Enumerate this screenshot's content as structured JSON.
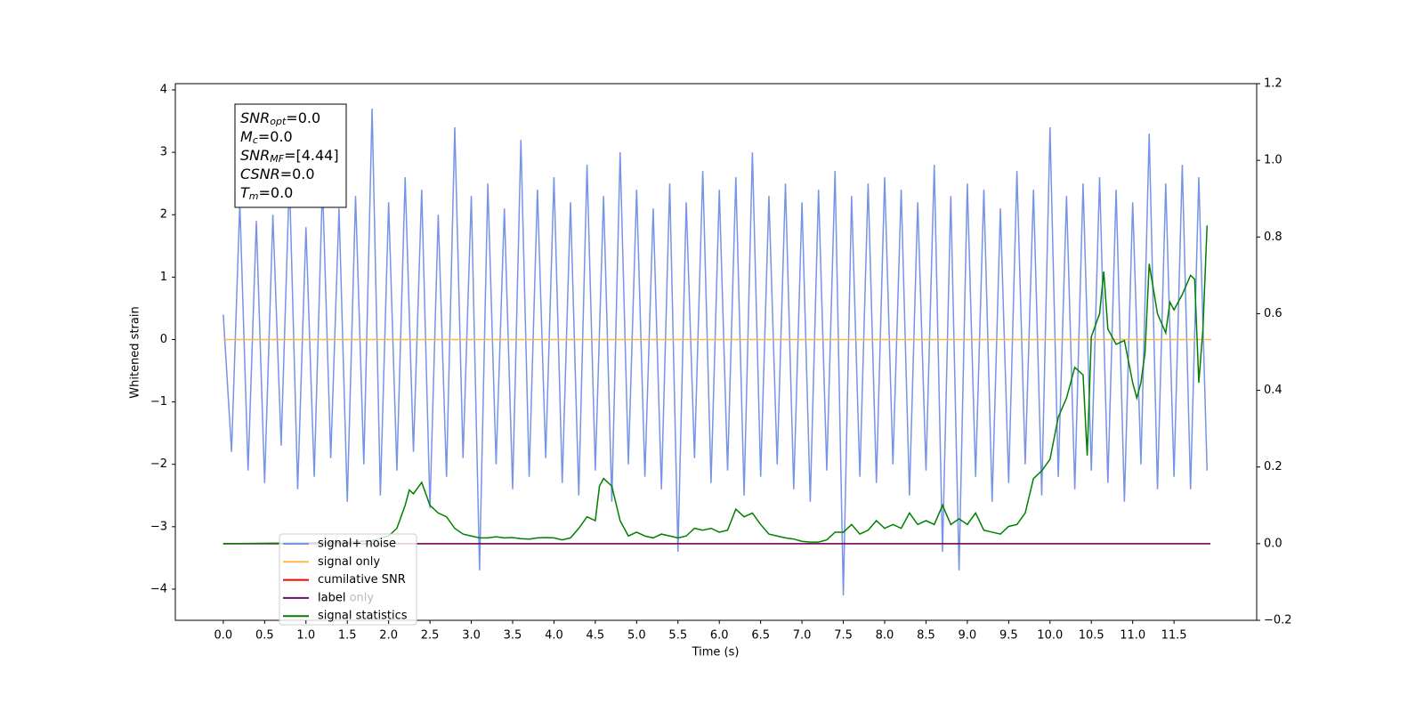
{
  "chart_data": {
    "type": "line",
    "xlabel": "Time (s)",
    "ylabel": "Whitened strain",
    "xlim": [
      -0.58,
      12.5
    ],
    "ylim": [
      -4.5,
      4.1
    ],
    "y2lim": [
      -0.2,
      1.2
    ],
    "xticks": [
      {
        "value": 0,
        "label": "0.0"
      },
      0.5,
      {
        "value": 1,
        "label": "1.0"
      },
      1.5,
      {
        "value": 2,
        "label": "2.0"
      },
      2.5,
      {
        "value": 3,
        "label": "3.0"
      },
      3.5,
      {
        "value": 4,
        "label": "4.0"
      },
      4.5,
      {
        "value": 5,
        "label": "5.0"
      },
      5.5,
      {
        "value": 6,
        "label": "6.0"
      },
      6.5,
      {
        "value": 7,
        "label": "7.0"
      },
      7.5,
      {
        "value": 8,
        "label": "8.0"
      },
      8.5,
      {
        "value": 9,
        "label": "9.0"
      },
      9.5,
      {
        "value": 10,
        "label": "10.0"
      },
      10.5,
      {
        "value": 11,
        "label": "11.0"
      },
      11.5
    ],
    "yticks": [
      {
        "value": -4,
        "label": "−4"
      },
      {
        "value": -3,
        "label": "−3"
      },
      {
        "value": -2,
        "label": "−2"
      },
      {
        "value": -1,
        "label": "−1"
      },
      0,
      1,
      2,
      3,
      4
    ],
    "y2ticks": [
      {
        "value": -0.2,
        "label": "−0.2"
      },
      {
        "value": 0,
        "label": "0.0"
      },
      0.2,
      0.4,
      0.6,
      0.8,
      {
        "value": 1,
        "label": "1.0"
      },
      1.2
    ],
    "text_box": [
      {
        "name": "SNR",
        "sub": "opt",
        "value": "=0.0"
      },
      {
        "name": "M",
        "sub": "c",
        "value": "=0.0"
      },
      {
        "name": "SNR",
        "sub": "MF",
        "value": "=[4.44]"
      },
      {
        "name": "CSNR",
        "sub": "",
        "value": "=0.0"
      },
      {
        "name": "T",
        "sub": "m",
        "value": "=0.0"
      }
    ],
    "legend_ghost_text": "label only",
    "series": [
      {
        "name": "signal+ noise",
        "color": "#7693e6",
        "axis": "y",
        "x": [
          0.0,
          0.1,
          0.2,
          0.3,
          0.4,
          0.5,
          0.6,
          0.7,
          0.8,
          0.9,
          1.0,
          1.1,
          1.2,
          1.3,
          1.4,
          1.5,
          1.6,
          1.7,
          1.8,
          1.9,
          2.0,
          2.1,
          2.2,
          2.3,
          2.4,
          2.5,
          2.6,
          2.7,
          2.8,
          2.9,
          3.0,
          3.1,
          3.2,
          3.3,
          3.4,
          3.5,
          3.6,
          3.7,
          3.8,
          3.9,
          4.0,
          4.1,
          4.2,
          4.3,
          4.4,
          4.5,
          4.6,
          4.7,
          4.8,
          4.9,
          5.0,
          5.1,
          5.2,
          5.3,
          5.4,
          5.5,
          5.6,
          5.7,
          5.8,
          5.9,
          6.0,
          6.1,
          6.2,
          6.3,
          6.4,
          6.5,
          6.6,
          6.7,
          6.8,
          6.9,
          7.0,
          7.1,
          7.2,
          7.3,
          7.4,
          7.5,
          7.6,
          7.7,
          7.8,
          7.9,
          8.0,
          8.1,
          8.2,
          8.3,
          8.4,
          8.5,
          8.6,
          8.7,
          8.8,
          8.9,
          9.0,
          9.1,
          9.2,
          9.3,
          9.4,
          9.5,
          9.6,
          9.7,
          9.8,
          9.9,
          10.0,
          10.1,
          10.2,
          10.3,
          10.4,
          10.5,
          10.6,
          10.7,
          10.8,
          10.9,
          11.0,
          11.1,
          11.2,
          11.3,
          11.4,
          11.5,
          11.6,
          11.7,
          11.8,
          11.9
        ],
        "values": [
          0.4,
          -1.8,
          2.2,
          -2.1,
          1.9,
          -2.3,
          2.0,
          -1.7,
          2.6,
          -2.4,
          1.8,
          -2.2,
          2.5,
          -1.9,
          2.1,
          -2.6,
          2.3,
          -2.0,
          3.7,
          -2.5,
          2.2,
          -2.1,
          2.6,
          -1.8,
          2.4,
          -2.7,
          2.0,
          -2.2,
          3.4,
          -1.9,
          2.3,
          -3.7,
          2.5,
          -2.0,
          2.1,
          -2.4,
          3.2,
          -2.2,
          2.4,
          -1.9,
          2.6,
          -2.3,
          2.2,
          -2.5,
          2.8,
          -2.1,
          2.3,
          -2.6,
          3.0,
          -2.0,
          2.4,
          -2.2,
          2.1,
          -2.4,
          2.5,
          -3.4,
          2.2,
          -1.9,
          2.7,
          -2.3,
          2.4,
          -2.1,
          2.6,
          -2.5,
          3.0,
          -2.2,
          2.3,
          -2.0,
          2.5,
          -2.4,
          2.2,
          -2.6,
          2.4,
          -2.1,
          2.7,
          -4.1,
          2.3,
          -2.2,
          2.5,
          -2.3,
          2.6,
          -2.0,
          2.4,
          -2.5,
          2.2,
          -2.1,
          2.8,
          -3.4,
          2.3,
          -3.7,
          2.5,
          -2.2,
          2.4,
          -2.6,
          2.1,
          -2.3,
          2.7,
          -2.0,
          2.4,
          -2.5,
          3.4,
          -2.2,
          2.3,
          -2.4,
          2.5,
          -2.1,
          2.6,
          -2.3,
          2.4,
          -2.6,
          2.2,
          -2.0,
          3.3,
          -2.4,
          2.5,
          -2.2,
          2.8,
          -2.4,
          2.6,
          -2.1
        ]
      },
      {
        "name": "signal only",
        "color": "#ffb74d",
        "axis": "y",
        "x": [
          0.0,
          11.95
        ],
        "values": [
          0,
          0
        ]
      },
      {
        "name": "cumilative SNR",
        "color": "#ff0000",
        "axis": "y2",
        "x": [
          0.0,
          11.94
        ],
        "values": [
          0,
          0
        ]
      },
      {
        "name": "label",
        "color": "#6a0f6f",
        "axis": "y2",
        "x": [
          0.0,
          11.94
        ],
        "values": [
          0,
          0
        ]
      },
      {
        "name": "signal statistics",
        "color": "#008000",
        "axis": "y2",
        "x": [
          0.0,
          1.5,
          1.6,
          1.8,
          2.0,
          2.1,
          2.2,
          2.25,
          2.3,
          2.4,
          2.5,
          2.6,
          2.7,
          2.8,
          2.9,
          3.0,
          3.1,
          3.2,
          3.3,
          3.4,
          3.5,
          3.6,
          3.7,
          3.8,
          3.9,
          4.0,
          4.1,
          4.2,
          4.3,
          4.4,
          4.5,
          4.55,
          4.6,
          4.7,
          4.8,
          4.9,
          5.0,
          5.1,
          5.2,
          5.3,
          5.4,
          5.5,
          5.6,
          5.7,
          5.8,
          5.9,
          6.0,
          6.1,
          6.2,
          6.3,
          6.4,
          6.5,
          6.6,
          6.7,
          6.8,
          6.9,
          7.0,
          7.1,
          7.2,
          7.3,
          7.4,
          7.5,
          7.6,
          7.7,
          7.8,
          7.9,
          8.0,
          8.1,
          8.2,
          8.3,
          8.4,
          8.5,
          8.6,
          8.7,
          8.8,
          8.9,
          9.0,
          9.1,
          9.2,
          9.3,
          9.4,
          9.5,
          9.6,
          9.7,
          9.8,
          9.9,
          10.0,
          10.1,
          10.2,
          10.3,
          10.4,
          10.45,
          10.5,
          10.6,
          10.65,
          10.7,
          10.8,
          10.9,
          11.0,
          11.05,
          11.1,
          11.15,
          11.2,
          11.3,
          11.4,
          11.45,
          11.5,
          11.6,
          11.7,
          11.75,
          11.8,
          11.85,
          11.9
        ],
        "values": [
          0.0,
          0.003,
          0.005,
          0.008,
          0.02,
          0.04,
          0.1,
          0.14,
          0.13,
          0.16,
          0.1,
          0.08,
          0.07,
          0.04,
          0.025,
          0.02,
          0.015,
          0.015,
          0.018,
          0.015,
          0.016,
          0.013,
          0.012,
          0.015,
          0.016,
          0.015,
          0.01,
          0.015,
          0.04,
          0.07,
          0.06,
          0.15,
          0.17,
          0.15,
          0.06,
          0.02,
          0.03,
          0.02,
          0.015,
          0.025,
          0.02,
          0.015,
          0.02,
          0.04,
          0.035,
          0.04,
          0.03,
          0.035,
          0.09,
          0.07,
          0.08,
          0.05,
          0.025,
          0.02,
          0.015,
          0.012,
          0.006,
          0.004,
          0.004,
          0.01,
          0.03,
          0.03,
          0.05,
          0.025,
          0.035,
          0.06,
          0.04,
          0.05,
          0.04,
          0.08,
          0.05,
          0.06,
          0.05,
          0.1,
          0.05,
          0.065,
          0.05,
          0.08,
          0.035,
          0.03,
          0.025,
          0.045,
          0.05,
          0.08,
          0.17,
          0.19,
          0.22,
          0.33,
          0.38,
          0.46,
          0.44,
          0.23,
          0.54,
          0.6,
          0.71,
          0.56,
          0.52,
          0.53,
          0.42,
          0.38,
          0.42,
          0.5,
          0.73,
          0.6,
          0.55,
          0.63,
          0.61,
          0.65,
          0.7,
          0.69,
          0.42,
          0.56,
          0.83
        ]
      }
    ]
  }
}
